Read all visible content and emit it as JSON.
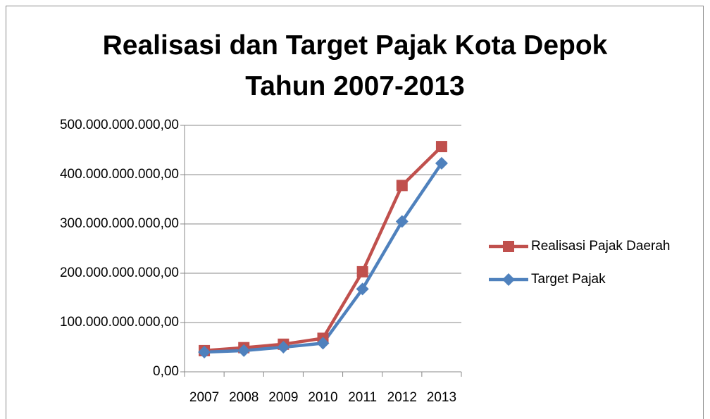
{
  "chart_data": {
    "type": "line",
    "title": "Realisasi dan Target Pajak Kota Depok Tahun 2007-2013",
    "categories": [
      "2007",
      "2008",
      "2009",
      "2010",
      "2011",
      "2012",
      "2013"
    ],
    "series": [
      {
        "name": "Realisasi Pajak Daerah",
        "color": "#c0504d",
        "marker": "square",
        "values": [
          43000000000,
          49000000000,
          56000000000,
          68000000000,
          203000000000,
          378000000000,
          457000000000
        ]
      },
      {
        "name": "Target Pajak",
        "color": "#4f81bd",
        "marker": "diamond",
        "values": [
          40000000000,
          43000000000,
          50000000000,
          58000000000,
          168000000000,
          305000000000,
          423000000000
        ]
      }
    ],
    "ylim": [
      0,
      500000000000
    ],
    "yticks": [
      {
        "value": 0,
        "label": "0,00"
      },
      {
        "value": 100000000000,
        "label": "100.000.000.000,00"
      },
      {
        "value": 200000000000,
        "label": "200.000.000.000,00"
      },
      {
        "value": 300000000000,
        "label": "300.000.000.000,00"
      },
      {
        "value": 400000000000,
        "label": "400.000.000.000,00"
      },
      {
        "value": 500000000000,
        "label": "500.000.000.000,00"
      }
    ],
    "grid": true,
    "legend": "right"
  }
}
